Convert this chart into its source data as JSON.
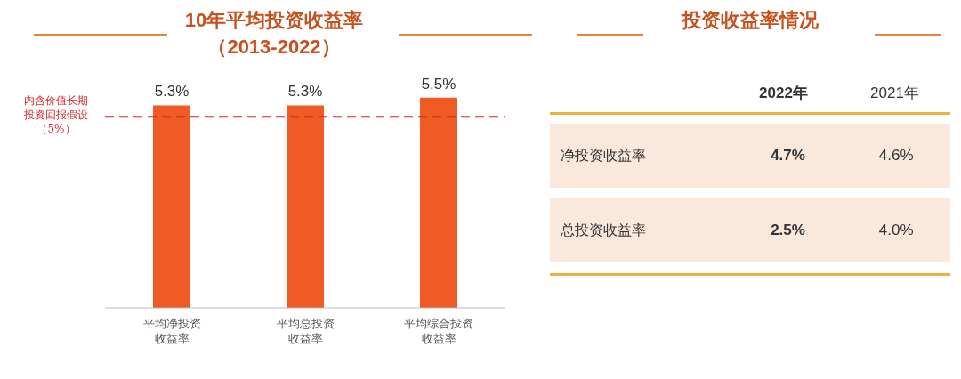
{
  "chart_data": [
    {
      "type": "bar",
      "title": "10年平均投资收益率",
      "subtitle": "（2013-2022）",
      "categories": [
        "平均净投资收益率",
        "平均总投资收益率",
        "平均综合投资收益率"
      ],
      "values": [
        5.3,
        5.3,
        5.5
      ],
      "value_labels": [
        "5.3%",
        "5.3%",
        "5.5%"
      ],
      "color": "#f05a24",
      "ref_lines": [
        {
          "axis": "y",
          "value": 5,
          "label": "内含价值长期投资回报假设（5%）",
          "color": "#d42a2a",
          "line_style": "dashed"
        }
      ]
    },
    {
      "type": "other",
      "title": "投资收益率情况",
      "annotations": [
        "2022年",
        "2021年",
        "净投资收益率",
        "4.7%",
        "4.6%",
        "总投资收益率",
        "2.5%",
        "4.0%"
      ]
    }
  ]
}
